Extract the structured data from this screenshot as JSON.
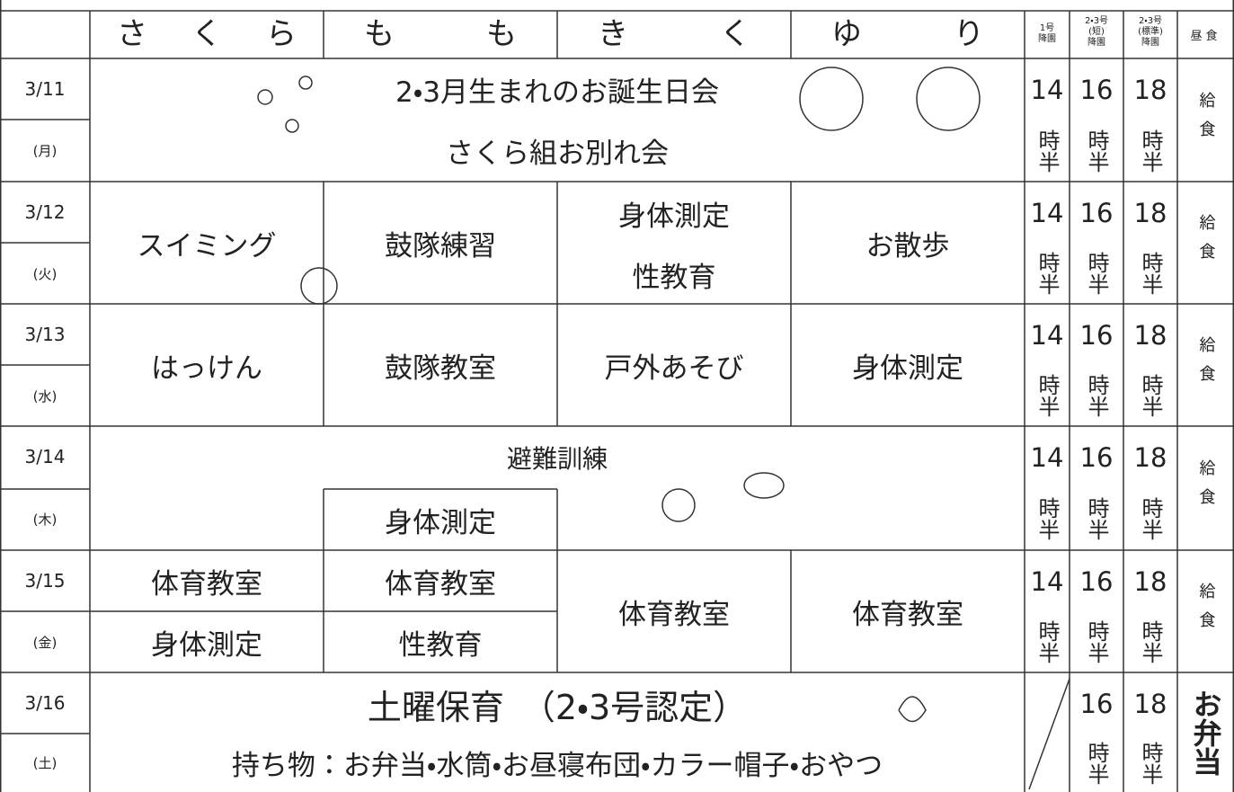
{
  "header": {
    "classes": [
      "さくら",
      "もも",
      "きく",
      "ゆり"
    ],
    "pickup": [
      [
        "1号",
        "降園"
      ],
      [
        "2・3号",
        "(短)",
        "降園"
      ],
      [
        "2・3号",
        "(標準)",
        "降園"
      ]
    ],
    "lunch": "昼食"
  },
  "days": [
    {
      "date": "3/11",
      "weekday": "(月)",
      "events": [
        "2・3月生まれのお誕生日会",
        "さくら組お別れ会"
      ],
      "pickup": [
        {
          "time": "14",
          "unit": "時半"
        },
        {
          "time": "16",
          "unit": "時半"
        },
        {
          "time": "18",
          "unit": "時半"
        }
      ],
      "lunch": "給食"
    },
    {
      "date": "3/12",
      "weekday": "(火)",
      "events": [
        "スイミング",
        "鼓隊練習",
        "身体測定",
        "性教育",
        "お散歩"
      ],
      "pickup": [
        {
          "time": "14",
          "unit": "時半"
        },
        {
          "time": "16",
          "unit": "時半"
        },
        {
          "time": "18",
          "unit": "時半"
        }
      ],
      "lunch": "給食"
    },
    {
      "date": "3/13",
      "weekday": "(水)",
      "events": [
        "はっけん",
        "鼓隊教室",
        "戸外あそび",
        "身体測定"
      ],
      "pickup": [
        {
          "time": "14",
          "unit": "時半"
        },
        {
          "time": "16",
          "unit": "時半"
        },
        {
          "time": "18",
          "unit": "時半"
        }
      ],
      "lunch": "給食"
    },
    {
      "date": "3/14",
      "weekday": "(木)",
      "events": [
        "避難訓練",
        "身体測定"
      ],
      "pickup": [
        {
          "time": "14",
          "unit": "時半"
        },
        {
          "time": "16",
          "unit": "時半"
        },
        {
          "time": "18",
          "unit": "時半"
        }
      ],
      "lunch": "給食"
    },
    {
      "date": "3/15",
      "weekday": "(金)",
      "events": [
        "体育教室",
        "身体測定",
        "体育教室",
        "性教育",
        "体育教室",
        "体育教室"
      ],
      "pickup": [
        {
          "time": "14",
          "unit": "時半"
        },
        {
          "time": "16",
          "unit": "時半"
        },
        {
          "time": "18",
          "unit": "時半"
        }
      ],
      "lunch": "給食"
    },
    {
      "date": "3/16",
      "weekday": "(土)",
      "events": [
        "土曜保育　（2・3号認定）",
        "持ち物：お弁当・水筒・お昼寝布団・カラー帽子・おやつ"
      ],
      "pickup": [
        {
          "time": "16",
          "unit": "時半"
        },
        {
          "time": "18",
          "unit": "時半"
        }
      ],
      "lunch": "お弁当"
    }
  ]
}
